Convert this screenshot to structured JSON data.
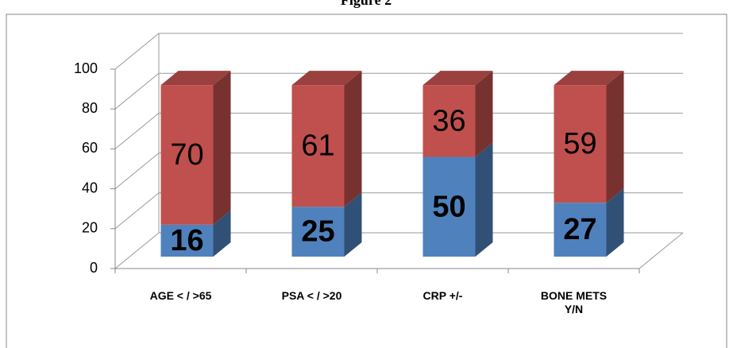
{
  "chart_data": {
    "type": "bar3d-stacked",
    "title": "Figure 2",
    "categories": [
      "AGE < / >65",
      "PSA < / >20",
      "CRP +/-",
      "BONE METS Y/N"
    ],
    "series": [
      {
        "color": "#4f81bd",
        "values": [
          16,
          25,
          50,
          27
        ]
      },
      {
        "color": "#c0504d",
        "values": [
          70,
          61,
          36,
          59
        ]
      }
    ],
    "ylim": [
      0,
      100
    ],
    "yticks": [
      0,
      20,
      40,
      60,
      80,
      100
    ],
    "grid": true
  }
}
